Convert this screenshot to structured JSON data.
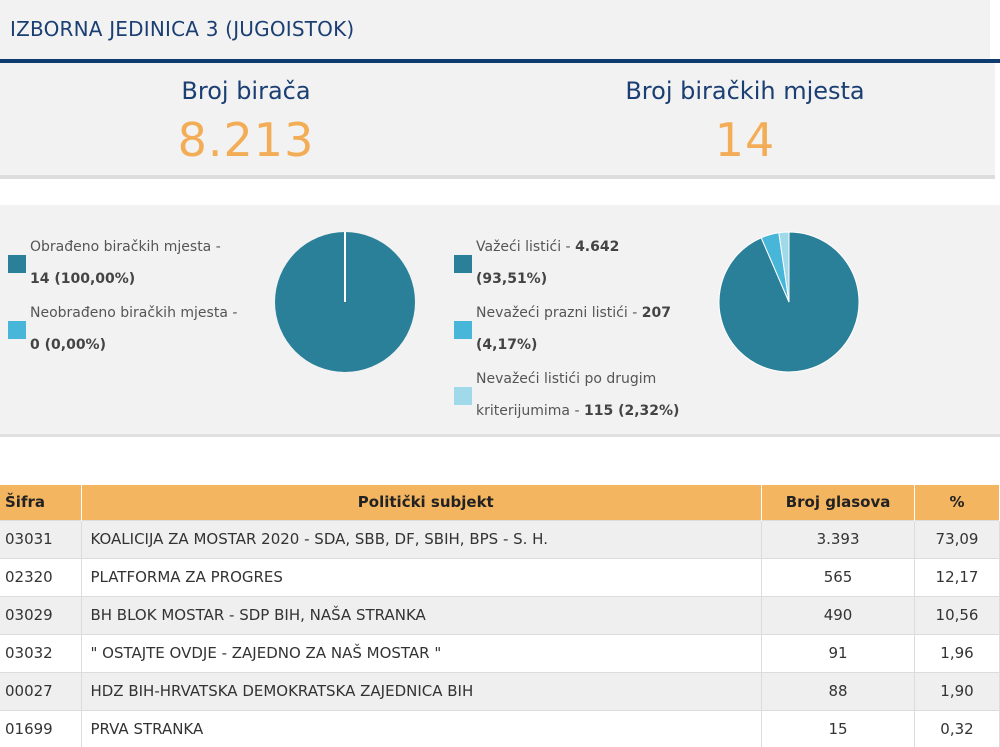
{
  "header": {
    "title": "IZBORNA JEDINICA 3 (JUGOISTOK)"
  },
  "stats": {
    "voters_label": "Broj birača",
    "voters_value": "8.213",
    "stations_label": "Broj biračkih mjesta",
    "stations_value": "14"
  },
  "colors": {
    "primary": "#2a8098",
    "secondary": "#47b6d8",
    "tertiary": "#9fd9ea",
    "accent": "#f3ad57",
    "navy": "#1b3f73"
  },
  "stations_legend": [
    {
      "line1": "Obrađeno biračkih mjesta -",
      "line2": "14 (100,00%)",
      "color": "#2a8098",
      "fraction": 1.0
    },
    {
      "line1": "Neobrađeno biračkih mjesta -",
      "line2": "0 (0,00%)",
      "color": "#47b6d8",
      "fraction": 0.0
    }
  ],
  "ballots_legend": [
    {
      "line1_text": "Važeći listići - ",
      "line1_bold": "4.642",
      "line2": "(93,51%)",
      "color": "#2a8098",
      "fraction": 0.9351
    },
    {
      "line1_text": "Nevažeći prazni listići - ",
      "line1_bold": "207",
      "line2": "(4,17%)",
      "color": "#47b6d8",
      "fraction": 0.0417
    },
    {
      "line1_text": "Nevažeći listići po drugim",
      "line2_text": "kriterijumima - ",
      "line2_bold": "115 (2,32%)",
      "color": "#9fd9ea",
      "fraction": 0.0232
    }
  ],
  "table": {
    "headers": {
      "code": "Šifra",
      "subject": "Politički subjekt",
      "votes": "Broj glasova",
      "pct": "%"
    },
    "rows": [
      {
        "code": "03031",
        "subject": "KOALICIJA ZA MOSTAR 2020 - SDA, SBB, DF, SBIH, BPS - S. H.",
        "votes": "3.393",
        "pct": "73,09"
      },
      {
        "code": "02320",
        "subject": "PLATFORMA ZA PROGRES",
        "votes": "565",
        "pct": "12,17"
      },
      {
        "code": "03029",
        "subject": "BH BLOK MOSTAR - SDP BIH, NAŠA STRANKA",
        "votes": "490",
        "pct": "10,56"
      },
      {
        "code": "03032",
        "subject": "\" OSTAJTE OVDJE - ZAJEDNO ZA NAŠ MOSTAR \"",
        "votes": "91",
        "pct": "1,96"
      },
      {
        "code": "00027",
        "subject": "HDZ BIH-HRVATSKA DEMOKRATSKA ZAJEDNICA BIH",
        "votes": "88",
        "pct": "1,90"
      },
      {
        "code": "01699",
        "subject": "PRVA STRANKA",
        "votes": "15",
        "pct": "0,32"
      }
    ]
  }
}
